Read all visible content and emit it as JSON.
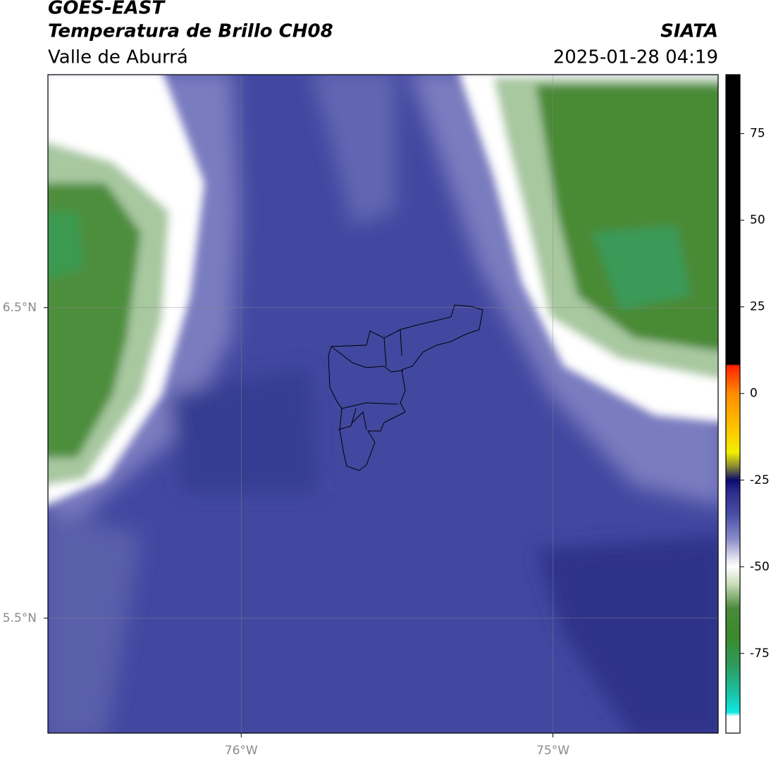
{
  "header": {
    "title": "GOES-EAST",
    "subtitle": "Temperatura de Brillo CH08",
    "region": "Valle de Aburrá",
    "source": "SIATA",
    "datetime": "2025-01-28 04:19"
  },
  "map": {
    "xlim": [
      -76.62,
      -74.47
    ],
    "ylim": [
      5.13,
      7.25
    ],
    "xticks": [
      {
        "value": -76,
        "label": "76°W"
      },
      {
        "value": -75,
        "label": "75°W"
      }
    ],
    "yticks": [
      {
        "value": 6.5,
        "label": "6.5°N"
      },
      {
        "value": 5.5,
        "label": "5.5°N"
      }
    ],
    "grid": true
  },
  "colorbar": {
    "lim": [
      -98,
      92
    ],
    "ticks": [
      75,
      50,
      25,
      0,
      -25,
      -50,
      -75
    ],
    "stops": [
      {
        "value": 92,
        "color": "#000000"
      },
      {
        "value": 8.5,
        "color": "#000000"
      },
      {
        "value": 8,
        "color": "#ff2000"
      },
      {
        "value": 0,
        "color": "#ff8c00"
      },
      {
        "value": -12,
        "color": "#ffd000"
      },
      {
        "value": -17,
        "color": "#f0f000"
      },
      {
        "value": -21,
        "color": "#8a8a30"
      },
      {
        "value": -25,
        "color": "#0a0a70"
      },
      {
        "value": -28,
        "color": "#2a2a8a"
      },
      {
        "value": -35,
        "color": "#4a4fa8"
      },
      {
        "value": -42,
        "color": "#8a8cc8"
      },
      {
        "value": -48,
        "color": "#e8e8f2"
      },
      {
        "value": -50,
        "color": "#ffffff"
      },
      {
        "value": -55,
        "color": "#c8dcb8"
      },
      {
        "value": -62,
        "color": "#4a8a3a"
      },
      {
        "value": -70,
        "color": "#3a8a2a"
      },
      {
        "value": -78,
        "color": "#2e9a5a"
      },
      {
        "value": -86,
        "color": "#1ac0a0"
      },
      {
        "value": -92,
        "color": "#10e8e0"
      },
      {
        "value": -93.2,
        "color": "#ffffff"
      },
      {
        "value": -98,
        "color": "#ffffff"
      }
    ]
  }
}
